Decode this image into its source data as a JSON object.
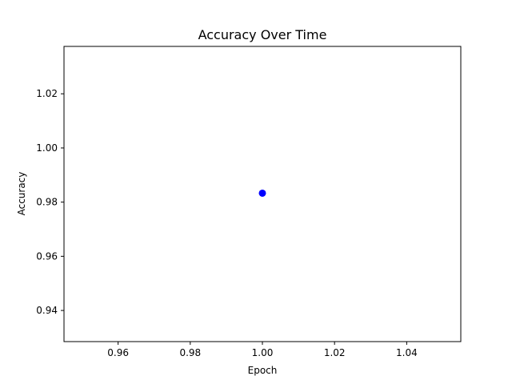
{
  "chart_data": {
    "type": "scatter",
    "title": "Accuracy Over Time",
    "xlabel": "Epoch",
    "ylabel": "Accuracy",
    "xlim": [
      0.945,
      1.055
    ],
    "ylim": [
      0.9285,
      1.0375
    ],
    "xticks": [
      0.96,
      0.98,
      1.0,
      1.02,
      1.04
    ],
    "xtick_labels": [
      "0.96",
      "0.98",
      "1.00",
      "1.02",
      "1.04"
    ],
    "yticks": [
      0.94,
      0.96,
      0.98,
      1.0,
      1.02
    ],
    "ytick_labels": [
      "0.94",
      "0.96",
      "0.98",
      "1.00",
      "1.02"
    ],
    "grid": false,
    "points": [
      {
        "x": 1.0,
        "y": 0.9833
      }
    ],
    "color": "#0000ff"
  }
}
